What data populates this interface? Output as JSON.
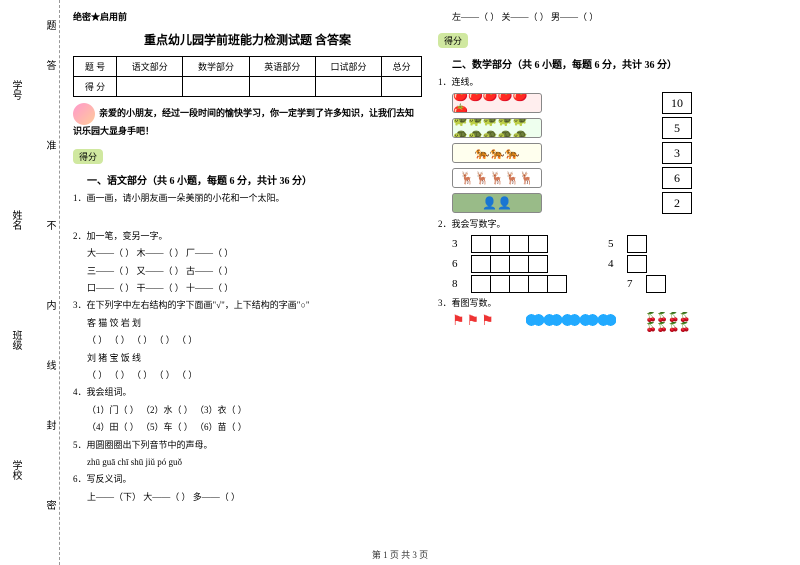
{
  "sidebar": {
    "labels": [
      "学号",
      "姓名",
      "班级",
      "学校"
    ],
    "marks": [
      "题",
      "答",
      "准",
      "不",
      "内",
      "线",
      "封",
      "密"
    ]
  },
  "secret": "绝密★启用前",
  "title": "重点幼儿园学前班能力检测试题 含答案",
  "scoreTable": {
    "headers": [
      "题 号",
      "语文部分",
      "数学部分",
      "英语部分",
      "口试部分",
      "总分"
    ],
    "row2": "得 分"
  },
  "intro": "亲爱的小朋友，经过一段时间的愉快学习，你一定学到了许多知识，让我们去知识乐园大显身手吧！",
  "badge": "得分",
  "part1": {
    "heading": "一、语文部分（共 6 小题，每题 6 分，共计 36 分）",
    "q1": "1．画一画，请小朋友画一朵美丽的小花和一个太阳。",
    "q2": "2．加一笔，变另一字。",
    "q2a": "大——（    ）    木——（    ）    厂——（    ）",
    "q2b": "三——（    ）    又——（    ）    古——（    ）",
    "q2c": "口——（    ）    干——（    ）    十——（    ）",
    "q3": "3．在下列字中左右结构的字下面画\"√\"，上下结构的字画\"○\"",
    "q3a": "客    猫    饺    岩    划",
    "q3b": "（  ） （  ） （  ） （  ） （  ）",
    "q3c": "刘    猪    宝    饭    线",
    "q3d": "（  ） （  ） （  ） （  ） （  ）",
    "q4": "4．我会组词。",
    "q4a": "（1）门（        ）  （2）水（        ）  （3）衣（        ）",
    "q4b": "（4）田（        ）  （5）车（        ）  （6）苗（        ）",
    "q5": "5．用圆圈圈出下列音节中的声母。",
    "q5a": "zhū   guā   chī   shū   jiǔ   pó   guǒ",
    "q6": "6．写反义词。",
    "q6a": "上——（下）    大——（    ）    多——（    ）"
  },
  "topRow": "左——（    ）    关——（    ）    男——（    ）",
  "part2": {
    "heading": "二、数学部分（共 6 小题，每题 6 分，共计 36 分）",
    "q1": "1．连线。",
    "match": [
      {
        "icons": "🍅🍅🍅🍅🍅🍅",
        "bg": "#fee",
        "num": "10"
      },
      {
        "icons": "🐢🐢🐢🐢🐢🐢🐢🐢🐢🐢",
        "bg": "#efe",
        "num": "5"
      },
      {
        "icons": "🐅🐅🐅",
        "bg": "#ffe",
        "num": "3"
      },
      {
        "icons": "🦌🦌🦌🦌🦌",
        "bg": "#fff",
        "num": "6"
      },
      {
        "icons": "👤👤",
        "bg": "#9b8",
        "num": "2"
      }
    ],
    "q2": "2．我会写数字。",
    "gridRows": [
      {
        "l1": "3",
        "c1": 4,
        "l2": "5",
        "c2": 1
      },
      {
        "l1": "6",
        "c1": 4,
        "l2": "4",
        "c2": 1
      },
      {
        "l1": "8",
        "c1": 5,
        "l2": "7",
        "c2": 1
      }
    ],
    "q3": "3．看图写数。"
  },
  "footer": "第 1 页 共 3 页"
}
